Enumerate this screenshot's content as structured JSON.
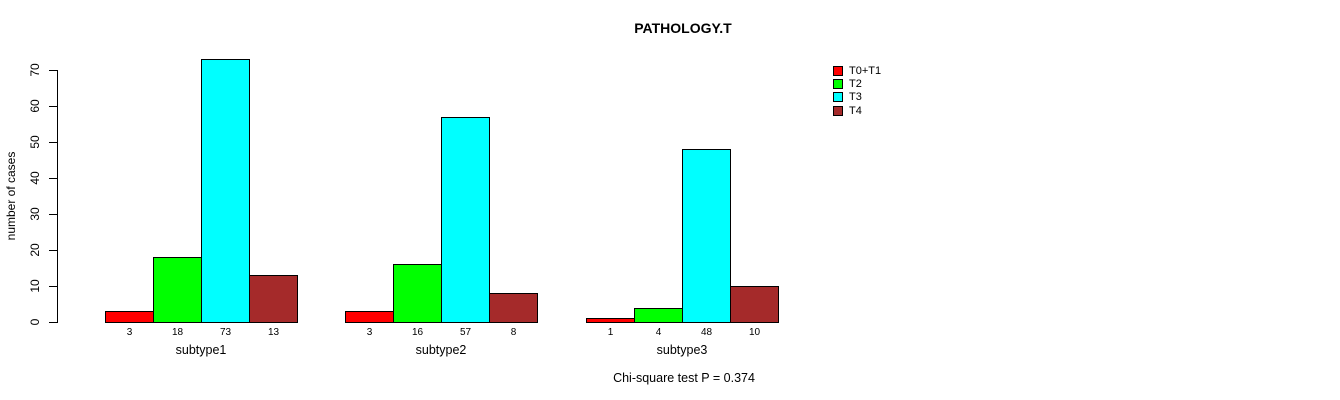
{
  "chart_data": {
    "type": "bar",
    "title": "PATHOLOGY.T",
    "ylabel": "number of cases",
    "ylim": [
      0,
      70
    ],
    "yticks": [
      0,
      10,
      20,
      30,
      40,
      50,
      60,
      70
    ],
    "categories": [
      "subtype1",
      "subtype2",
      "subtype3"
    ],
    "series": [
      {
        "name": "T0+T1",
        "color": "#FF0000",
        "values": [
          3,
          3,
          1
        ]
      },
      {
        "name": "T2",
        "color": "#00FF00",
        "values": [
          18,
          16,
          4
        ]
      },
      {
        "name": "T3",
        "color": "#00FFFF",
        "values": [
          73,
          57,
          48
        ]
      },
      {
        "name": "T4",
        "color": "#A52A2A",
        "values": [
          13,
          8,
          10
        ]
      }
    ],
    "bar_value_labels_shown": true,
    "annotation": "Chi-square test P = 0.374",
    "legend_position": "top-right",
    "grid": false,
    "colors": {
      "axis": "#000000",
      "text": "#000000",
      "background": "#FFFFFF",
      "bar_border": "#000000"
    }
  }
}
